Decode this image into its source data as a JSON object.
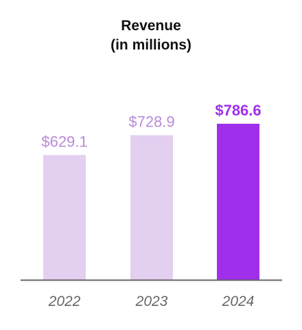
{
  "chart_data": {
    "type": "bar",
    "title": "Revenue",
    "subtitle": "(in millions)",
    "xlabel": "",
    "ylabel": "",
    "categories": [
      "2022",
      "2023",
      "2024"
    ],
    "values": [
      629.1,
      728.9,
      786.6
    ],
    "value_labels": [
      "$629.1",
      "$728.9",
      "$786.6"
    ],
    "highlight_index": 2,
    "grid": false,
    "legend": "none",
    "colors": {
      "bar": "#e3cff0",
      "bar_highlight": "#a02fec",
      "label": "#b98ad8",
      "label_highlight": "#a02fec",
      "tick": "#666666",
      "axis": "#666666",
      "title": "#111111"
    }
  }
}
